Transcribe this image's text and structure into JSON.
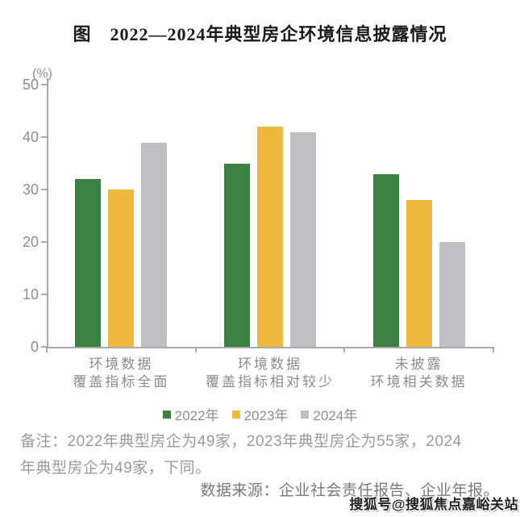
{
  "chart_data": {
    "type": "bar",
    "title": "图　2022—2024年典型房企环境信息披露情况",
    "ylabel": "(%)",
    "xlabel": "",
    "ylim": [
      0,
      50
    ],
    "yticks": [
      0,
      10,
      20,
      30,
      40,
      50
    ],
    "grid": false,
    "legend_position": "bottom",
    "categories": [
      "环境数据\n覆盖指标全面",
      "环境数据\n覆盖指标相对较少",
      "未披露\n环境相关数据"
    ],
    "series": [
      {
        "name": "2022年",
        "color": "#3A8142",
        "values": [
          32,
          35,
          33
        ]
      },
      {
        "name": "2023年",
        "color": "#EEB93D",
        "values": [
          30,
          42,
          28
        ]
      },
      {
        "name": "2024年",
        "color": "#C0C0C4",
        "values": [
          39,
          41,
          20
        ]
      }
    ]
  },
  "notes": {
    "remark": "备注：2022年典型房企为49家，2023年典型房企为55家，2024\n年典型房企为49家，下同。",
    "source": "数据来源：企业社会责任报告、企业年报。",
    "watermark": "搜狐号@搜狐焦点嘉峪关站"
  },
  "colors": {
    "axis": "#A9A9A9",
    "tick_label": "#8E8E8E",
    "category_label": "#8C8C8C",
    "remark_text": "#9A9A9A",
    "source_text": "#7A7A7A",
    "title_text": "#1A1A1A"
  }
}
